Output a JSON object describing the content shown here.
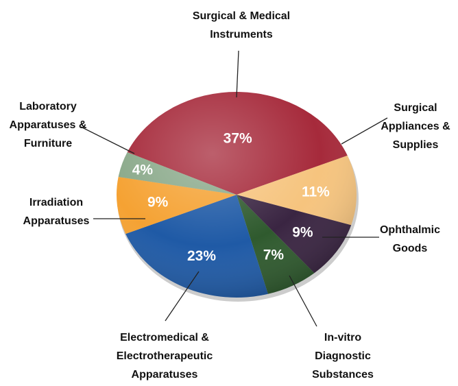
{
  "chart_data": {
    "type": "pie",
    "categories": [
      "Surgical & Medical\nInstruments",
      "Surgical\nAppliances &\nSupplies",
      "Ophthalmic\nGoods",
      "In-vitro\nDiagnostic\nSubstances",
      "Electromedical &\nElectrotherapeutic\nApparatuses",
      "Irradiation\nApparatuses",
      "Laboratory\nApparatuses &\nFurniture"
    ],
    "values": [
      37,
      11,
      9,
      7,
      23,
      9,
      4
    ],
    "value_labels": [
      "37%",
      "11%",
      "9%",
      "7%",
      "23%",
      "9%",
      "4%"
    ],
    "colors": [
      "#a62a3b",
      "#f6c47e",
      "#3a2542",
      "#2f5a2e",
      "#1f5aa6",
      "#f5a233",
      "#8aa98a"
    ]
  }
}
